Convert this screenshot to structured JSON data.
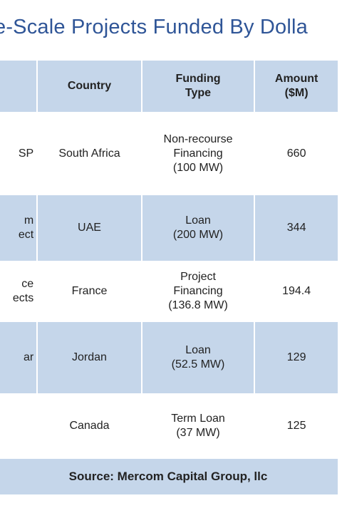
{
  "title": "e-Scale Projects Funded By Dolla",
  "table": {
    "headers": [
      "",
      "Country",
      "Funding Type",
      "Amount ($M)"
    ],
    "header_lines": {
      "funding": [
        "Funding",
        "Type"
      ],
      "amount": [
        "Amount",
        "($M)"
      ]
    },
    "rows": [
      {
        "project": [
          "SP"
        ],
        "country": "South Africa",
        "funding": [
          "Non-recourse",
          "Financing",
          "(100 MW)"
        ],
        "amount": "660"
      },
      {
        "project": [
          "m",
          "ect"
        ],
        "country": "UAE",
        "funding": [
          "Loan",
          "(200 MW)"
        ],
        "amount": "344"
      },
      {
        "project": [
          "ce",
          "ects"
        ],
        "country": "France",
        "funding": [
          "Project",
          "Financing",
          "(136.8 MW)"
        ],
        "amount": "194.4"
      },
      {
        "project": [
          "ar"
        ],
        "country": "Jordan",
        "funding": [
          "Loan",
          "(52.5 MW)"
        ],
        "amount": "129"
      },
      {
        "project": [
          ""
        ],
        "country": "Canada",
        "funding": [
          "Term Loan",
          "(37 MW)"
        ],
        "amount": "125"
      }
    ],
    "source": "Source: Mercom Capital Group, llc"
  }
}
